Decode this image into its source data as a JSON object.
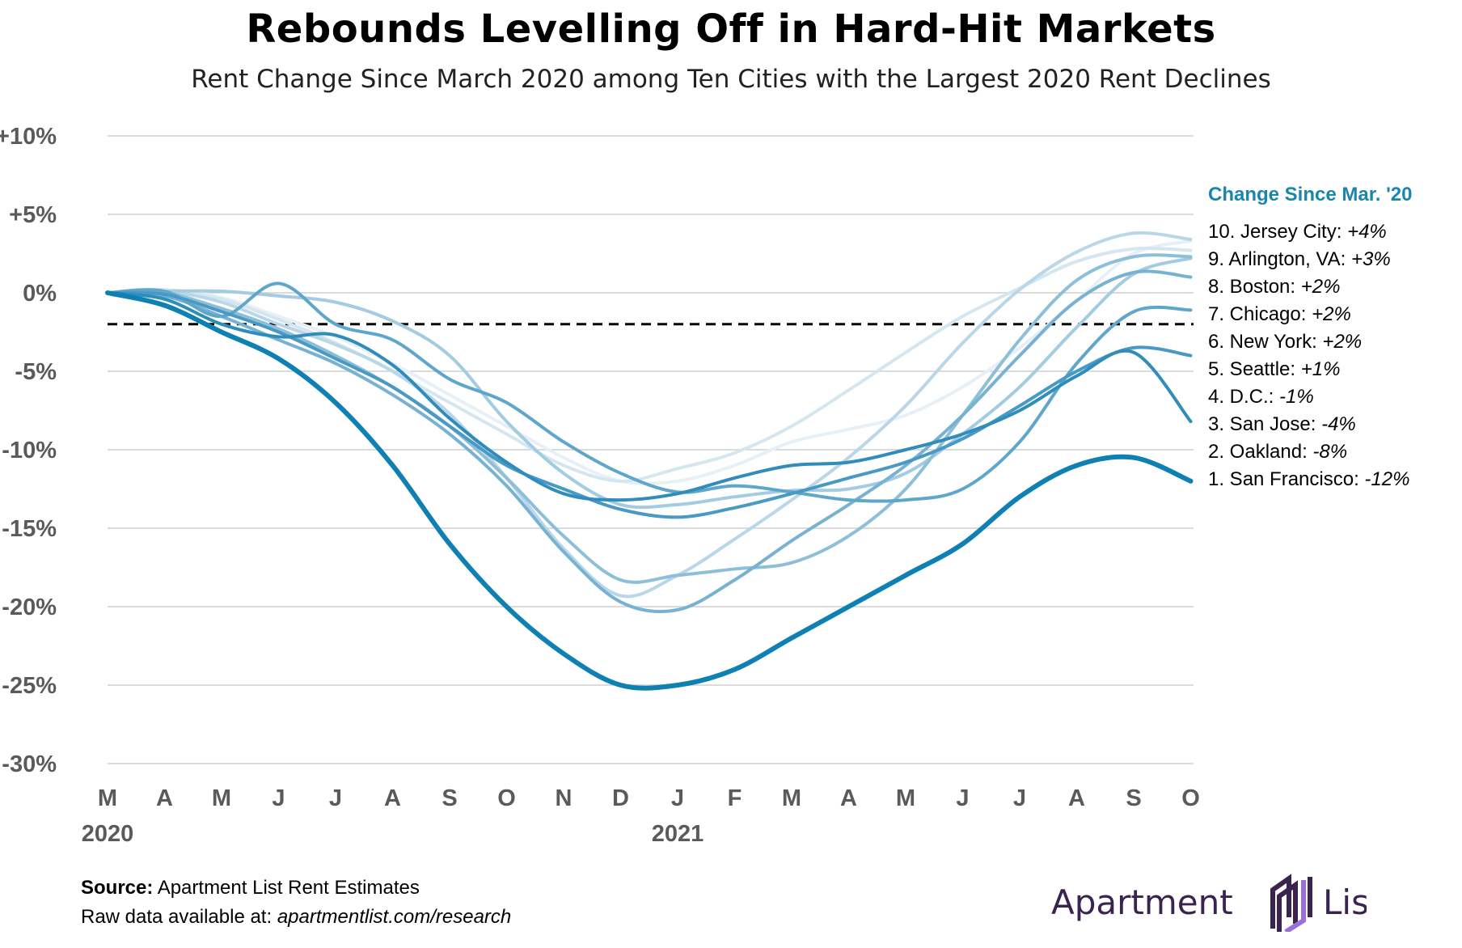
{
  "chart_data": {
    "type": "line",
    "title": "Rebounds Levelling Off in Hard-Hit Markets",
    "subtitle": "Rent Change Since March 2020 among Ten Cities with the Largest 2020 Rent Declines",
    "ylim": [
      -30,
      10
    ],
    "yticks": [
      "+10%",
      "+5%",
      "0%",
      "-5%",
      "-10%",
      "-15%",
      "-20%",
      "-25%",
      "-30%"
    ],
    "ytick_values": [
      10,
      5,
      0,
      -5,
      -10,
      -15,
      -20,
      -25,
      -30
    ],
    "x_labels": [
      "M",
      "A",
      "M",
      "J",
      "J",
      "A",
      "S",
      "O",
      "N",
      "D",
      "J",
      "F",
      "M",
      "A",
      "M",
      "J",
      "J",
      "A",
      "S",
      "O"
    ],
    "year_labels": [
      {
        "label": "2020",
        "index": 0
      },
      {
        "label": "2021",
        "index": 10
      }
    ],
    "reference_line": {
      "value": -2,
      "style": "dashed"
    },
    "grid": true,
    "legend_title": "Change Since Mar. '20",
    "legend": [
      {
        "rank": "10.",
        "name": "Jersey City:",
        "pct": "+4%"
      },
      {
        "rank": "9.",
        "name": "Arlington, VA:",
        "pct": "+3%"
      },
      {
        "rank": "8.",
        "name": "Boston:",
        "pct": "+2%"
      },
      {
        "rank": "7.",
        "name": "Chicago:",
        "pct": "+2%"
      },
      {
        "rank": "6.",
        "name": "New York:",
        "pct": "+2%"
      },
      {
        "rank": "5.",
        "name": "Seattle:",
        "pct": "+1%"
      },
      {
        "rank": "4.",
        "name": "D.C.:",
        "pct": "-1%"
      },
      {
        "rank": "3.",
        "name": "San Jose:",
        "pct": "-4%"
      },
      {
        "rank": "2.",
        "name": "Oakland:",
        "pct": "-8%"
      },
      {
        "rank": "1.",
        "name": "San Francisco:",
        "pct": "-12%"
      }
    ],
    "series": [
      {
        "color": "#e6f0f6",
        "width": 4,
        "values": [
          0,
          0.2,
          -0.3,
          -1.5,
          -2.8,
          -4.5,
          -6.5,
          -8.5,
          -10.5,
          -12,
          -12,
          -11,
          -9.5,
          -8.7,
          -7.8,
          -6,
          -3.5,
          -0.5,
          2.5,
          3.3
        ]
      },
      {
        "color": "#d4e6f0",
        "width": 4,
        "values": [
          0,
          0.2,
          -0.4,
          -1.7,
          -3.2,
          -5,
          -7,
          -9,
          -11,
          -12,
          -11.2,
          -10.2,
          -8.5,
          -6.2,
          -3.8,
          -1.5,
          0.3,
          2,
          2.8,
          2.7
        ]
      },
      {
        "color": "#b9d7e8",
        "width": 4,
        "values": [
          0,
          0.1,
          -0.6,
          -2,
          -3.3,
          -5,
          -7.7,
          -11.8,
          -16.3,
          -19.3,
          -18,
          -15.7,
          -13.2,
          -10.5,
          -7.2,
          -3.2,
          0.2,
          2.6,
          3.8,
          3.4
        ]
      },
      {
        "color": "#a3cbe1",
        "width": 4,
        "values": [
          0,
          0.1,
          0.1,
          -0.2,
          -0.6,
          -1.8,
          -4,
          -8.2,
          -11.5,
          -13.5,
          -13.5,
          -13,
          -12.6,
          -12.5,
          -11.5,
          -9,
          -6,
          -2.2,
          1.2,
          2.2
        ]
      },
      {
        "color": "#8dbfd9",
        "width": 4,
        "values": [
          0,
          0,
          -1,
          -2.3,
          -4,
          -6,
          -8.5,
          -11.8,
          -15.5,
          -18.3,
          -18,
          -17.6,
          -17.2,
          -15.5,
          -12.5,
          -7.8,
          -3,
          0.8,
          2.3,
          2.3
        ]
      },
      {
        "color": "#77b2d2",
        "width": 4,
        "values": [
          0,
          -0.2,
          -1.5,
          -3,
          -4.5,
          -6.5,
          -9,
          -12.3,
          -16.5,
          -19.7,
          -20.2,
          -18.3,
          -15.8,
          -13.5,
          -11,
          -7.8,
          -4,
          -0.5,
          1.3,
          1
        ]
      },
      {
        "color": "#5fa6cb",
        "width": 4,
        "values": [
          0,
          0.1,
          -1.5,
          0.6,
          -2,
          -3,
          -5.5,
          -7,
          -9.5,
          -11.5,
          -12.7,
          -12.3,
          -12.7,
          -13.2,
          -13.2,
          -12.5,
          -9.5,
          -4.5,
          -1.2,
          -1.1
        ]
      },
      {
        "color": "#4899c3",
        "width": 4,
        "values": [
          0,
          -0.1,
          -1.2,
          -2.5,
          -4.2,
          -6,
          -8.5,
          -11,
          -12.5,
          -13.8,
          -14.3,
          -13.7,
          -12.8,
          -11.8,
          -10.8,
          -9.3,
          -7.2,
          -5,
          -3.5,
          -4
        ]
      },
      {
        "color": "#308cbb",
        "width": 4,
        "values": [
          0,
          -0.4,
          -2,
          -2.8,
          -2.7,
          -4.6,
          -8,
          -10.8,
          -12.8,
          -13.2,
          -12.8,
          -11.8,
          -11,
          -10.8,
          -10,
          -9,
          -7.5,
          -5.3,
          -3.8,
          -8.2
        ]
      },
      {
        "color": "#0f80b2",
        "width": 6,
        "values": [
          0,
          -0.8,
          -2.5,
          -4.2,
          -7,
          -11,
          -16,
          -20,
          -23,
          -25,
          -25,
          -24,
          -22,
          -20,
          -18,
          -16,
          -13,
          -11,
          -10.5,
          -12
        ]
      }
    ]
  },
  "source": {
    "label": "Source:",
    "text": "Apartment List Rent Estimates",
    "raw_label": "Raw data available at:",
    "raw_url": "apartmentlist.com/research"
  },
  "logo": {
    "text": "Apartment List",
    "color": "#3b2350",
    "accent": "#9b6fd8"
  }
}
